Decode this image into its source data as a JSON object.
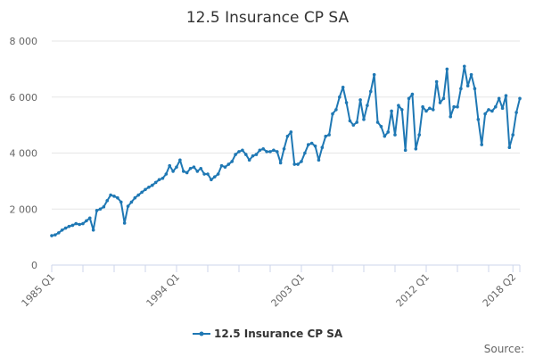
{
  "chart_data": {
    "type": "line",
    "title": "12.5 Insurance CP SA",
    "xlabel": "",
    "ylabel": "",
    "ylim": [
      0,
      8000
    ],
    "y_ticks": [
      "0",
      "2 000",
      "4 000",
      "6 000",
      "8 000"
    ],
    "y_tick_values": [
      0,
      2000,
      4000,
      6000,
      8000
    ],
    "x_tick_labels": [
      "1985 Q1",
      "1994 Q1",
      "2003 Q1",
      "2012 Q1",
      "2018 Q2"
    ],
    "x_tick_indices": [
      0,
      36,
      72,
      108,
      133
    ],
    "grid": true,
    "legend_position": "bottom",
    "colors": {
      "series": "#1f78b4",
      "grid": "#e6e6e6",
      "axis": "#ccd6eb"
    },
    "series": [
      {
        "name": "12.5 Insurance CP SA",
        "x_start": "1985 Q1",
        "values": [
          1050,
          1080,
          1150,
          1250,
          1320,
          1380,
          1420,
          1480,
          1450,
          1480,
          1580,
          1680,
          1250,
          1950,
          2000,
          2080,
          2300,
          2500,
          2460,
          2400,
          2250,
          1500,
          2100,
          2250,
          2400,
          2500,
          2600,
          2700,
          2780,
          2850,
          2950,
          3050,
          3100,
          3250,
          3550,
          3350,
          3500,
          3750,
          3350,
          3300,
          3450,
          3500,
          3350,
          3450,
          3250,
          3250,
          3050,
          3150,
          3250,
          3550,
          3500,
          3600,
          3700,
          3950,
          4050,
          4100,
          3950,
          3750,
          3900,
          3950,
          4100,
          4150,
          4050,
          4050,
          4100,
          4050,
          3650,
          4150,
          4600,
          4750,
          3600,
          3600,
          3700,
          4000,
          4300,
          4350,
          4250,
          3750,
          4200,
          4600,
          4650,
          5400,
          5550,
          6000,
          6350,
          5800,
          5150,
          5000,
          5100,
          5900,
          5200,
          5700,
          6200,
          6800,
          5100,
          4950,
          4600,
          4750,
          5500,
          4650,
          5700,
          5550,
          4100,
          5950,
          6100,
          4150,
          4650,
          5650,
          5500,
          5600,
          5550,
          6550,
          5800,
          5950,
          7000,
          5300,
          5650,
          5650,
          6300,
          7100,
          6400,
          6800,
          6300,
          5200,
          4300,
          5400,
          5550,
          5500,
          5650,
          5950,
          5600,
          6050,
          4200,
          4650,
          5450,
          5950
        ]
      }
    ],
    "source_label": "Source:"
  }
}
